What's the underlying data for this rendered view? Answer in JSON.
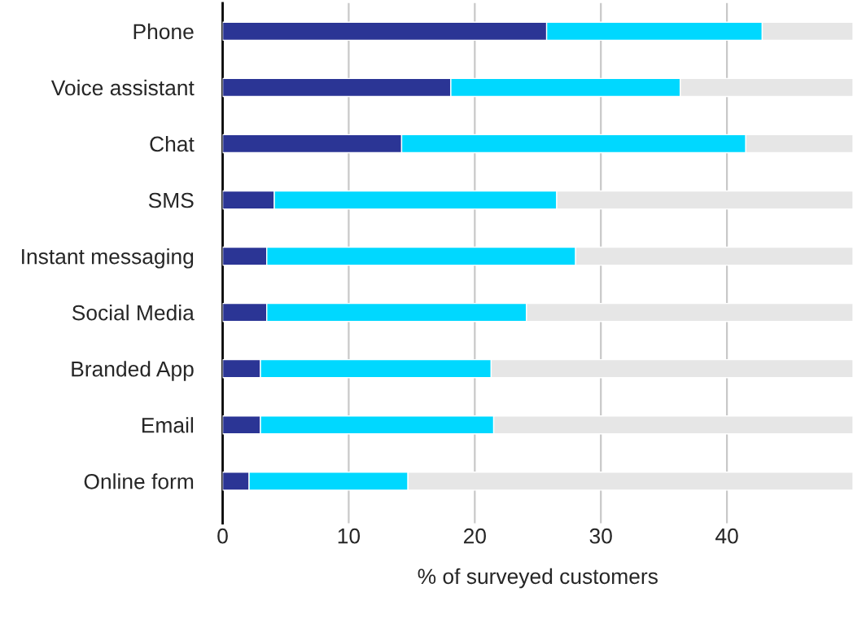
{
  "chart_data": {
    "type": "bar",
    "orientation": "horizontal",
    "stacked": true,
    "xlabel": "% of surveyed customers",
    "categories": [
      "Phone",
      "Voice assistant",
      "Chat",
      "SMS",
      "Instant messaging",
      "Social Media",
      "Branded App",
      "Email",
      "Online form"
    ],
    "series": [
      {
        "color": "#2b3595",
        "values": [
          25.7,
          18.1,
          14.2,
          4.1,
          3.5,
          3.5,
          3.0,
          3.0,
          2.1
        ]
      },
      {
        "color": "#00d8ff",
        "values": [
          17.1,
          18.2,
          27.3,
          22.4,
          24.5,
          20.6,
          18.3,
          18.5,
          12.6
        ]
      },
      {
        "color": "#e6e6e6",
        "values": [
          7.2,
          13.7,
          8.5,
          23.5,
          22.0,
          25.9,
          28.7,
          28.5,
          35.3
        ]
      }
    ],
    "xlim": [
      0,
      50
    ],
    "xticks": [
      0,
      10,
      20,
      30,
      40
    ],
    "grid": "x",
    "legend": false
  }
}
